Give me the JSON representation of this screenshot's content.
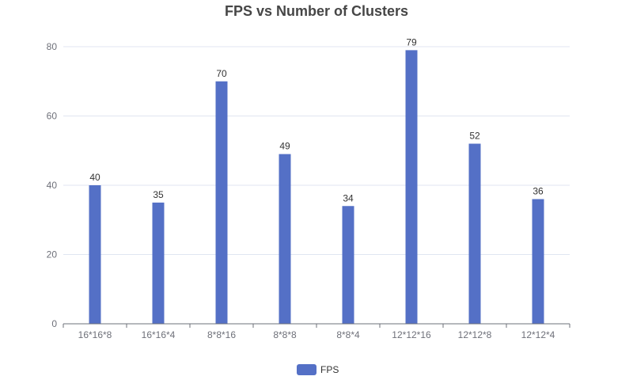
{
  "chart_data": {
    "type": "bar",
    "title": "FPS vs Number of Clusters",
    "xlabel": "",
    "ylabel": "",
    "categories": [
      "16*16*8",
      "16*16*4",
      "8*8*16",
      "8*8*8",
      "8*8*4",
      "12*12*16",
      "12*12*8",
      "12*12*4"
    ],
    "series": [
      {
        "name": "FPS",
        "values": [
          40,
          35,
          70,
          49,
          34,
          79,
          52,
          36
        ]
      }
    ],
    "ylim": [
      0,
      80
    ],
    "yticks": [
      0,
      20,
      40,
      60,
      80
    ],
    "grid": true,
    "legend_position": "bottom-center",
    "data_labels": true
  },
  "colors": {
    "bar": "#5470c6",
    "grid": "#e0e6f1",
    "axis": "#6e7079",
    "title": "#464646"
  }
}
